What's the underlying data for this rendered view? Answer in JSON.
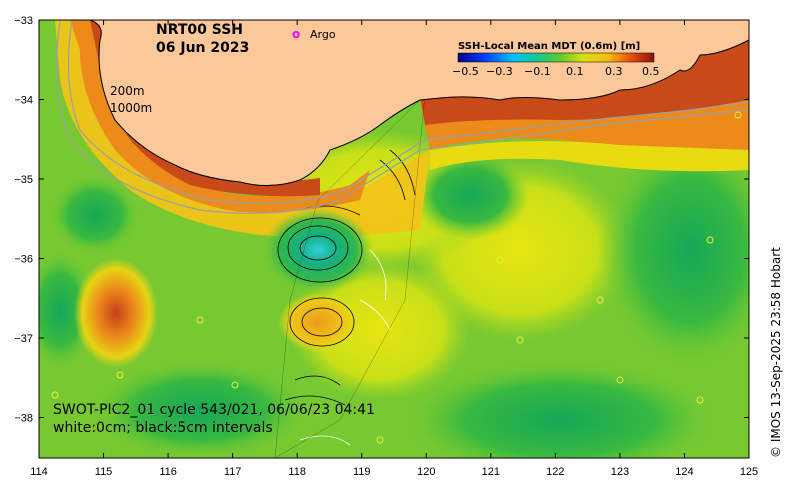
{
  "title": {
    "line1": "NRT00 SSH",
    "line2": "06 Jun 2023"
  },
  "legend": {
    "marker": "o",
    "argo_label": "Argo",
    "marker_color": "#ff00ff"
  },
  "colorbar": {
    "title": "SSH-Local Mean MDT (0.6m) [m]",
    "ticks": [
      "−0.5",
      "−0.3",
      "−0.1",
      "0.1",
      "0.3",
      "0.5"
    ]
  },
  "depth_labels": {
    "d200": "200m",
    "d1000": "1000m"
  },
  "swot": {
    "line1": "SWOT-PIC2_01 cycle 543/021, 06/06/23 04:41",
    "line2": "white:0cm; black:5cm intervals"
  },
  "credit": "© IMOS 13-Sep-2025 23:58 Hobart",
  "axes": {
    "x_ticks": [
      "114",
      "115",
      "116",
      "117",
      "118",
      "119",
      "120",
      "121",
      "122",
      "123",
      "124",
      "125"
    ],
    "y_ticks": [
      "−33",
      "−34",
      "−35",
      "−36",
      "−37",
      "−38"
    ]
  },
  "colors": {
    "land": "#fcc89a",
    "coast": "#000000",
    "bathy": "#9aa0a6"
  }
}
